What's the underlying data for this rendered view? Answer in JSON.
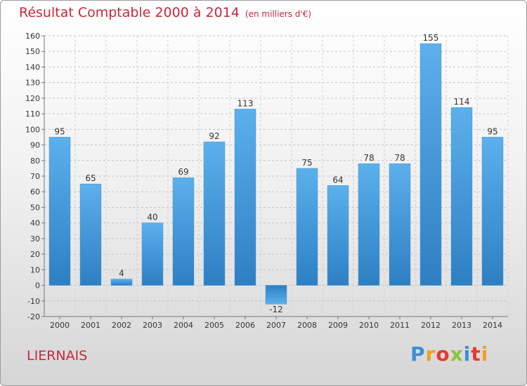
{
  "header": {
    "title": "Résultat Comptable 2000 à 2014",
    "unit": "(en milliers d'€)"
  },
  "footer": {
    "commune": "LIERNAIS",
    "logo_letters": [
      "P",
      "r",
      "o",
      "x",
      "i",
      "t",
      "i"
    ],
    "logo_colors": [
      "#3a8fd8",
      "#f0a020",
      "#e63a2e",
      "#8bc43a",
      "#3a8fd8",
      "#e63a2e",
      "#f0a020"
    ]
  },
  "colors": {
    "bar": "#4a9fe0",
    "bar_dark": "#2d7fc3",
    "title": "#c8283b"
  },
  "chart_data": {
    "type": "bar",
    "title": "Résultat Comptable 2000 à 2014",
    "unit": "(en milliers d'€)",
    "categories": [
      "2000",
      "2001",
      "2002",
      "2003",
      "2004",
      "2005",
      "2006",
      "2007",
      "2008",
      "2009",
      "2010",
      "2011",
      "2012",
      "2013",
      "2014"
    ],
    "values": [
      95,
      65,
      4,
      40,
      69,
      92,
      113,
      -12,
      75,
      64,
      78,
      78,
      155,
      114,
      95
    ],
    "ylim": [
      -20,
      160
    ],
    "yticks": [
      -20,
      -10,
      0,
      10,
      20,
      30,
      40,
      50,
      60,
      70,
      80,
      90,
      100,
      110,
      120,
      130,
      140,
      150,
      160
    ],
    "grid": true
  }
}
